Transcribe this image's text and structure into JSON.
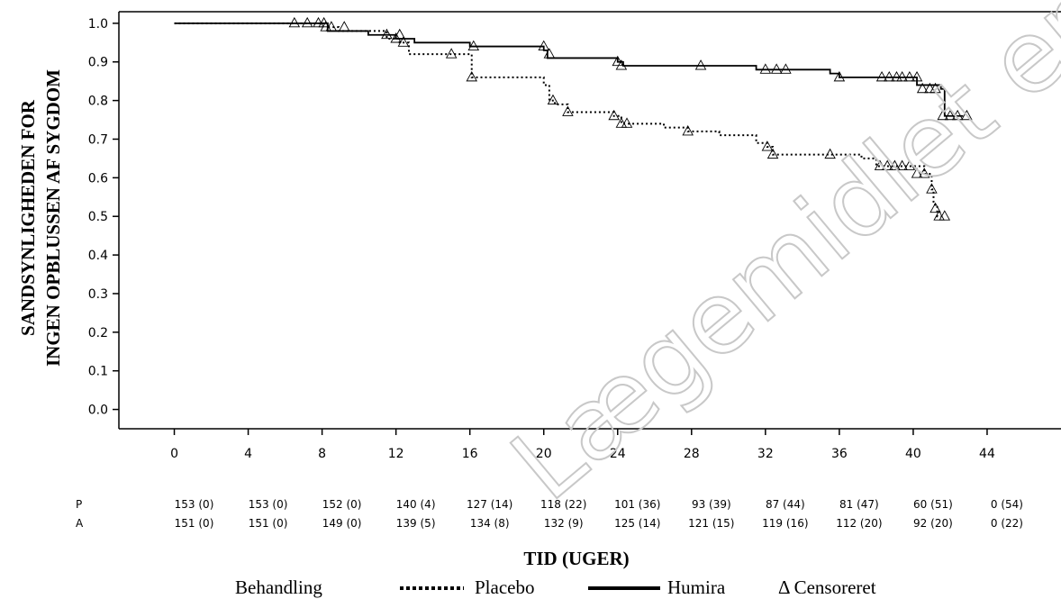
{
  "chart_data": {
    "type": "line",
    "title": "",
    "ylabel_line1": "SANDSYNLIGHEDEN FOR",
    "ylabel_line2": "INGEN OPBLUSSEN AF SYGDOM",
    "xlabel": "TID (UGER)",
    "xlim": [
      -3,
      48
    ],
    "ylim": [
      -0.05,
      1.03
    ],
    "xticks": [
      0,
      4,
      8,
      12,
      16,
      20,
      24,
      28,
      32,
      36,
      40,
      44
    ],
    "yticks": [
      "0.0",
      "0.1",
      "0.2",
      "0.3",
      "0.4",
      "0.5",
      "0.6",
      "0.7",
      "0.8",
      "0.9",
      "1.0"
    ],
    "series": [
      {
        "name": "Placebo",
        "style": "dotted",
        "steps": [
          [
            0,
            1.0
          ],
          [
            8.3,
            0.99
          ],
          [
            8.9,
            0.98
          ],
          [
            11.5,
            0.96
          ],
          [
            12.2,
            0.95
          ],
          [
            12.7,
            0.92
          ],
          [
            16.1,
            0.86
          ],
          [
            20.0,
            0.84
          ],
          [
            20.3,
            0.8
          ],
          [
            20.6,
            0.79
          ],
          [
            21.3,
            0.77
          ],
          [
            23.8,
            0.76
          ],
          [
            24.2,
            0.74
          ],
          [
            26.5,
            0.73
          ],
          [
            27.8,
            0.72
          ],
          [
            29.5,
            0.71
          ],
          [
            31.5,
            0.69
          ],
          [
            32.1,
            0.68
          ],
          [
            32.4,
            0.66
          ],
          [
            37.2,
            0.65
          ],
          [
            38.0,
            0.63
          ],
          [
            40.6,
            0.61
          ],
          [
            41.0,
            0.57
          ],
          [
            41.1,
            0.53
          ],
          [
            41.3,
            0.5
          ]
        ],
        "end": 41.5,
        "censored": [
          [
            6.5,
            1.0
          ],
          [
            7.2,
            1.0
          ],
          [
            7.8,
            1.0
          ],
          [
            8.1,
            1.0
          ],
          [
            8.5,
            0.99
          ],
          [
            9.2,
            0.99
          ],
          [
            12.0,
            0.96
          ],
          [
            12.4,
            0.95
          ],
          [
            15.0,
            0.92
          ],
          [
            16.1,
            0.86
          ],
          [
            20.5,
            0.8
          ],
          [
            21.3,
            0.77
          ],
          [
            23.8,
            0.76
          ],
          [
            24.2,
            0.74
          ],
          [
            24.5,
            0.74
          ],
          [
            27.8,
            0.72
          ],
          [
            32.1,
            0.68
          ],
          [
            32.4,
            0.66
          ],
          [
            35.5,
            0.66
          ],
          [
            38.2,
            0.63
          ],
          [
            38.6,
            0.63
          ],
          [
            39.0,
            0.63
          ],
          [
            39.4,
            0.63
          ],
          [
            39.8,
            0.63
          ],
          [
            40.2,
            0.61
          ],
          [
            40.6,
            0.61
          ],
          [
            41.0,
            0.57
          ],
          [
            41.2,
            0.52
          ],
          [
            41.4,
            0.5
          ],
          [
            41.7,
            0.5
          ]
        ]
      },
      {
        "name": "Humira",
        "style": "solid",
        "steps": [
          [
            0,
            1.0
          ],
          [
            8.3,
            0.98
          ],
          [
            10.5,
            0.97
          ],
          [
            12.0,
            0.96
          ],
          [
            13.0,
            0.95
          ],
          [
            16.0,
            0.94
          ],
          [
            20.0,
            0.93
          ],
          [
            20.2,
            0.91
          ],
          [
            24.0,
            0.9
          ],
          [
            24.3,
            0.89
          ],
          [
            31.5,
            0.88
          ],
          [
            35.5,
            0.87
          ],
          [
            36.0,
            0.86
          ],
          [
            40.2,
            0.84
          ],
          [
            41.5,
            0.83
          ],
          [
            41.7,
            0.76
          ]
        ],
        "end": 42.7,
        "censored": [
          [
            8.2,
            0.99
          ],
          [
            11.5,
            0.97
          ],
          [
            12.2,
            0.97
          ],
          [
            16.2,
            0.94
          ],
          [
            20.0,
            0.94
          ],
          [
            20.3,
            0.92
          ],
          [
            24.0,
            0.9
          ],
          [
            24.2,
            0.89
          ],
          [
            28.5,
            0.89
          ],
          [
            32.0,
            0.88
          ],
          [
            32.6,
            0.88
          ],
          [
            33.1,
            0.88
          ],
          [
            36.0,
            0.86
          ],
          [
            38.3,
            0.86
          ],
          [
            38.7,
            0.86
          ],
          [
            39.1,
            0.86
          ],
          [
            39.4,
            0.86
          ],
          [
            39.8,
            0.86
          ],
          [
            40.2,
            0.86
          ],
          [
            40.5,
            0.83
          ],
          [
            40.9,
            0.83
          ],
          [
            41.2,
            0.83
          ],
          [
            41.6,
            0.76
          ],
          [
            42.0,
            0.76
          ],
          [
            42.4,
            0.76
          ],
          [
            42.9,
            0.76
          ]
        ]
      }
    ]
  },
  "risk_table": {
    "rows": [
      {
        "label": "P",
        "values": [
          "153 (0)",
          "153 (0)",
          "152 (0)",
          "140 (4)",
          "127 (14)",
          "118 (22)",
          "101 (36)",
          "93 (39)",
          "87 (44)",
          "81 (47)",
          "60 (51)",
          "0 (54)"
        ]
      },
      {
        "label": "A",
        "values": [
          "151 (0)",
          "151 (0)",
          "149 (0)",
          "139 (5)",
          "134 (8)",
          "132 (9)",
          "125 (14)",
          "121 (15)",
          "119 (16)",
          "112 (20)",
          "92 (20)",
          "0 (22)"
        ]
      }
    ]
  },
  "legend": {
    "title": "Behandling",
    "placebo_label": "Placebo",
    "humira_label": "Humira",
    "censored_label": "Δ Censoreret"
  },
  "watermark": "Lægemidlet er ikke længere autoriseret",
  "colors": {
    "line": "#000000",
    "axis": "#000000",
    "watermark": "#c8c8c8"
  }
}
